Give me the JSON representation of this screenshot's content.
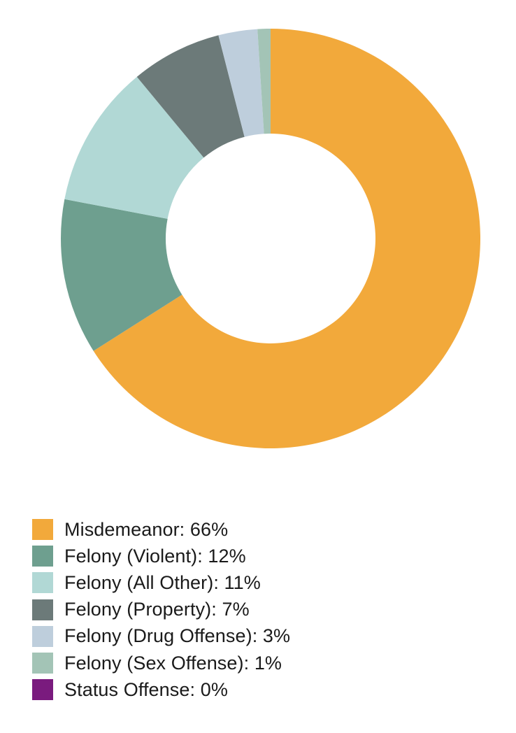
{
  "chart_data": {
    "type": "pie",
    "title": "",
    "legend_position": "bottom-left",
    "slices": [
      {
        "label": "Misdemeanor",
        "value": 66,
        "legend_text": "Misdemeanor: 66%",
        "color": "#F2A93B"
      },
      {
        "label": "Felony (Violent)",
        "value": 12,
        "legend_text": "Felony (Violent): 12%",
        "color": "#6E9F8F"
      },
      {
        "label": "Felony (All Other)",
        "value": 11,
        "legend_text": "Felony (All Other): 11%",
        "color": "#B1D8D5"
      },
      {
        "label": "Felony (Property)",
        "value": 7,
        "legend_text": "Felony (Property): 7%",
        "color": "#6C7A79"
      },
      {
        "label": "Felony (Drug Offense)",
        "value": 3,
        "legend_text": "Felony (Drug Offense): 3%",
        "color": "#BECEDC"
      },
      {
        "label": "Felony (Sex Offense)",
        "value": 1,
        "legend_text": "Felony (Sex Offense): 1%",
        "color": "#A3C4B6"
      },
      {
        "label": "Status Offense",
        "value": 0,
        "legend_text": "Status Offense: 0%",
        "color": "#7A1B7E"
      }
    ]
  }
}
